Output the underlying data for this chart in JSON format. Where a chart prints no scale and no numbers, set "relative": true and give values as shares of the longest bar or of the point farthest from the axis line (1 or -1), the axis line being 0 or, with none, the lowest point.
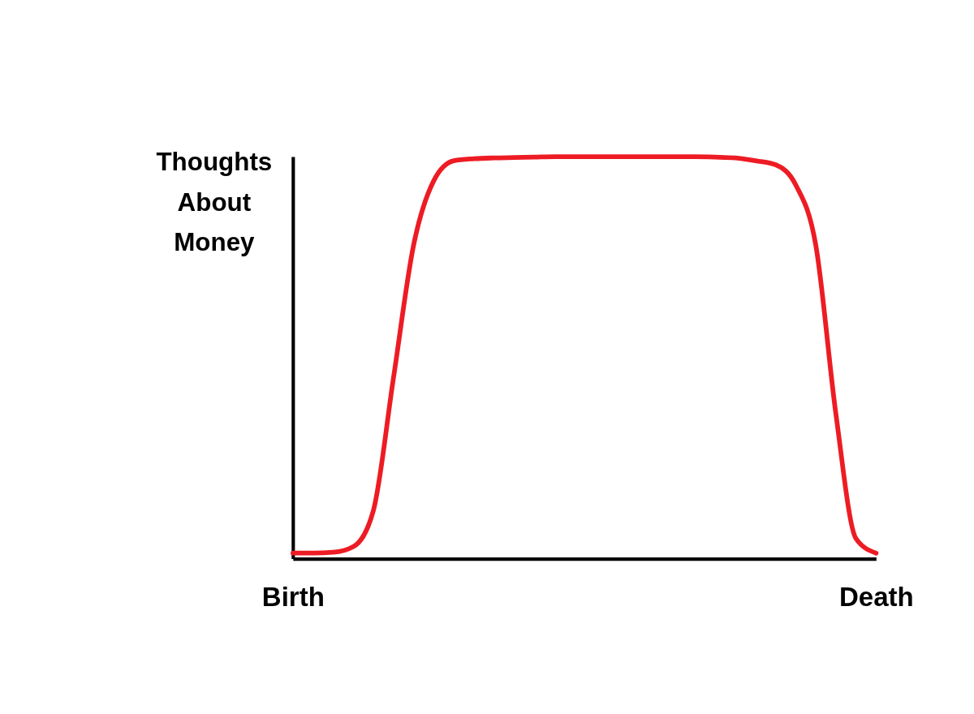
{
  "chart_data": {
    "type": "line",
    "relative": true,
    "ylabel": "Thoughts About Money",
    "color": "#ed1c24",
    "grid": false,
    "marker": "none",
    "line_style": "solid",
    "tick_labels": "x",
    "categories": [
      "Birth",
      null,
      null,
      null,
      null,
      null,
      null,
      null,
      null,
      null,
      null,
      null,
      null,
      null,
      null,
      null,
      null,
      null,
      null,
      null,
      null,
      null,
      null,
      null,
      null,
      null,
      null,
      null,
      null,
      "Death"
    ],
    "values": [
      0.014,
      0.014,
      0.016,
      0.03,
      0.12,
      0.45,
      0.78,
      0.94,
      0.99,
      0.995,
      0.997,
      0.998,
      0.999,
      1.0,
      1.0,
      1.0,
      1.0,
      1.0,
      1.0,
      1.0,
      1.0,
      0.999,
      0.997,
      0.99,
      0.98,
      0.93,
      0.78,
      0.36,
      0.05,
      0.014
    ]
  }
}
